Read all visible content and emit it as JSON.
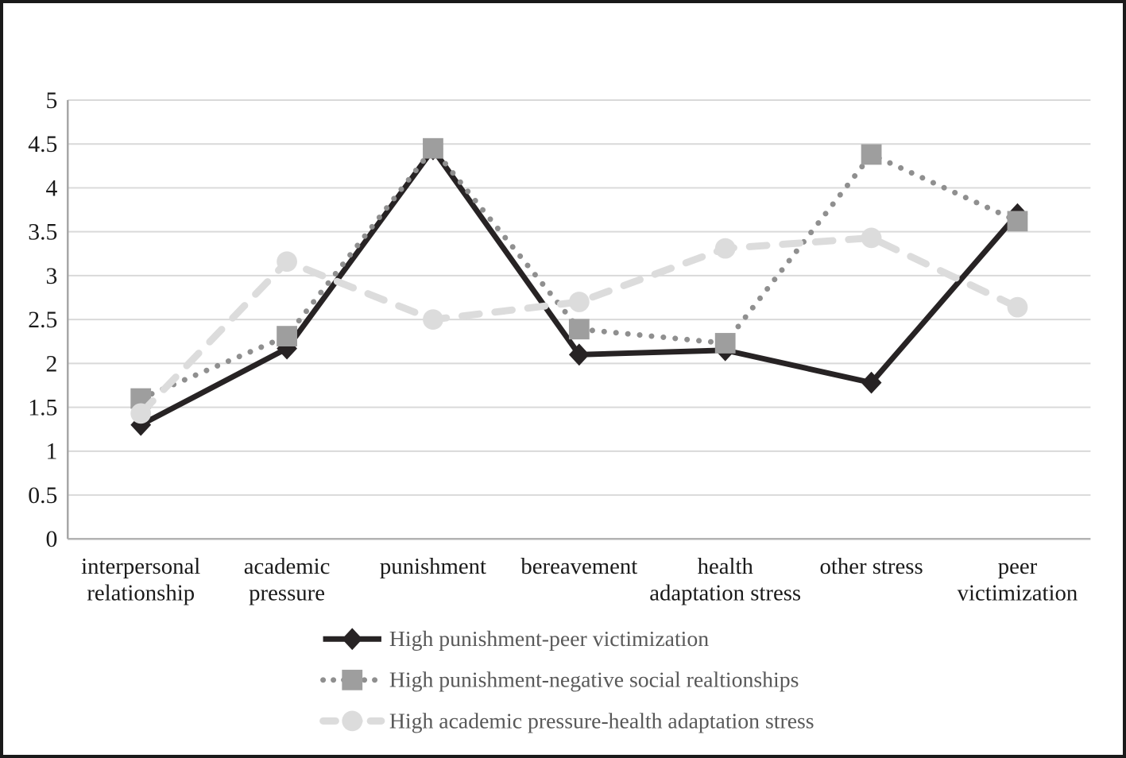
{
  "chart_data": {
    "type": "line",
    "title": "",
    "xlabel": "",
    "ylabel": "",
    "ylim": [
      0,
      5
    ],
    "ytick_step": 0.5,
    "yticks": [
      "0",
      "0.5",
      "1",
      "1.5",
      "2",
      "2.5",
      "3",
      "3.5",
      "4",
      "4.5",
      "5"
    ],
    "grid": true,
    "legend_position": "bottom-center",
    "categories": [
      {
        "label": "interpersonal relationship",
        "lines": [
          "interpersonal",
          "relationship"
        ]
      },
      {
        "label": "academic pressure",
        "lines": [
          "academic",
          "pressure"
        ]
      },
      {
        "label": "punishment",
        "lines": [
          "punishment"
        ]
      },
      {
        "label": "bereavement",
        "lines": [
          "bereavement"
        ]
      },
      {
        "label": "health adaptation stress",
        "lines": [
          "health",
          "adaptation stress"
        ]
      },
      {
        "label": "other stress",
        "lines": [
          "other stress"
        ]
      },
      {
        "label": "peer victimization",
        "lines": [
          "peer",
          "victimization"
        ]
      }
    ],
    "series": [
      {
        "name": "High punishment-peer victimization",
        "values": [
          1.3,
          2.17,
          4.44,
          2.1,
          2.15,
          1.78,
          3.7
        ],
        "color": "#272324",
        "line_style": "solid",
        "marker": "diamond"
      },
      {
        "name": "High punishment-negative social realtionships",
        "values": [
          1.6,
          2.31,
          4.45,
          2.39,
          2.23,
          4.38,
          3.62
        ],
        "color": "#8f8f8f",
        "marker_color": "#9e9e9e",
        "line_style": "dotted",
        "marker": "square"
      },
      {
        "name": "High academic pressure-health adaptation stress",
        "values": [
          1.43,
          3.16,
          2.5,
          2.7,
          3.31,
          3.43,
          2.64
        ],
        "color": "#dcdcdc",
        "marker_color": "#dcdcdc",
        "line_style": "dashed",
        "marker": "circle"
      }
    ]
  },
  "colors": {
    "grid": "#d9d9d9",
    "axis_left": "#a6a6a6",
    "axis_bottom": "#b3b3b3",
    "tick_text": "#1a1a1a",
    "legend_text": "#595959",
    "background": "#ffffff",
    "frame": "#1a1a1a"
  }
}
